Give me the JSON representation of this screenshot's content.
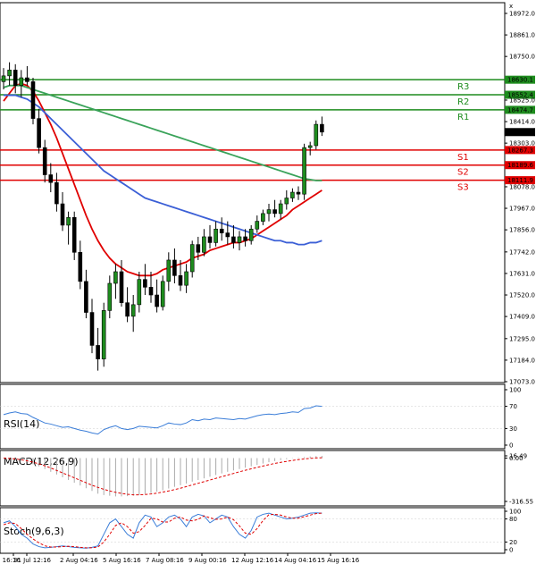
{
  "chart_data": {
    "type": "candlestick",
    "price_axis_ticks": [
      "18972.0",
      "18861.0",
      "18750.0",
      "18525.0",
      "18414.0",
      "18303.0",
      "18078.0",
      "17967.0",
      "17856.0",
      "17742.0",
      "17631.0",
      "17520.0",
      "17409.0",
      "17295.0",
      "17184.0",
      "17073.0"
    ],
    "x_tick_labels": [
      "Jul 16:16",
      "31 Jul 12:16",
      "2 Aug 04:16",
      "5 Aug 16:16",
      "7 Aug 08:16",
      "9 Aug 00:16",
      "12 Aug 12:16",
      "14 Aug 04:16",
      "15 Aug 16:16"
    ],
    "last_price": "18360.0",
    "levels": [
      {
        "name": "R3",
        "value": 18630.1,
        "tag": "18630.1",
        "color": "#1e8c1e"
      },
      {
        "name": "R2",
        "value": 18552.4,
        "tag": "18552.4",
        "color": "#1e8c1e"
      },
      {
        "name": "R1",
        "value": 18474.7,
        "tag": "18474.7",
        "color": "#1e8c1e"
      },
      {
        "name": "S1",
        "value": 18267.3,
        "tag": "18267.3",
        "color": "#e00000"
      },
      {
        "name": "S2",
        "value": 18189.6,
        "tag": "18189.6",
        "color": "#e00000"
      },
      {
        "name": "S3",
        "value": 18111.9,
        "tag": "18111.9",
        "color": "#e00000"
      }
    ],
    "candles": [
      [
        18620,
        18690,
        18580,
        18650
      ],
      [
        18650,
        18720,
        18600,
        18680
      ],
      [
        18680,
        18710,
        18560,
        18600
      ],
      [
        18600,
        18680,
        18540,
        18640
      ],
      [
        18640,
        18700,
        18600,
        18620
      ],
      [
        18620,
        18640,
        18400,
        18430
      ],
      [
        18430,
        18480,
        18250,
        18280
      ],
      [
        18280,
        18320,
        18100,
        18140
      ],
      [
        18140,
        18200,
        18050,
        18100
      ],
      [
        18100,
        18150,
        17950,
        17990
      ],
      [
        17990,
        18050,
        17850,
        17880
      ],
      [
        17880,
        17950,
        17780,
        17920
      ],
      [
        17920,
        17950,
        17700,
        17740
      ],
      [
        17740,
        17800,
        17550,
        17590
      ],
      [
        17590,
        17650,
        17400,
        17430
      ],
      [
        17430,
        17500,
        17220,
        17260
      ],
      [
        17260,
        17350,
        17130,
        17190
      ],
      [
        17190,
        17480,
        17150,
        17440
      ],
      [
        17440,
        17620,
        17400,
        17580
      ],
      [
        17580,
        17680,
        17500,
        17640
      ],
      [
        17640,
        17700,
        17460,
        17480
      ],
      [
        17480,
        17560,
        17380,
        17410
      ],
      [
        17410,
        17520,
        17330,
        17470
      ],
      [
        17470,
        17640,
        17430,
        17600
      ],
      [
        17600,
        17680,
        17520,
        17560
      ],
      [
        17560,
        17640,
        17480,
        17520
      ],
      [
        17520,
        17600,
        17430,
        17460
      ],
      [
        17460,
        17620,
        17440,
        17590
      ],
      [
        17590,
        17740,
        17540,
        17700
      ],
      [
        17700,
        17760,
        17580,
        17620
      ],
      [
        17620,
        17700,
        17540,
        17570
      ],
      [
        17570,
        17680,
        17530,
        17640
      ],
      [
        17640,
        17800,
        17610,
        17780
      ],
      [
        17780,
        17820,
        17700,
        17740
      ],
      [
        17740,
        17860,
        17720,
        17820
      ],
      [
        17820,
        17880,
        17760,
        17790
      ],
      [
        17790,
        17900,
        17770,
        17860
      ],
      [
        17860,
        17920,
        17800,
        17840
      ],
      [
        17840,
        17900,
        17780,
        17820
      ],
      [
        17820,
        17880,
        17760,
        17790
      ],
      [
        17790,
        17850,
        17750,
        17820
      ],
      [
        17820,
        17860,
        17770,
        17800
      ],
      [
        17800,
        17880,
        17780,
        17860
      ],
      [
        17860,
        17930,
        17840,
        17900
      ],
      [
        17900,
        17960,
        17880,
        17940
      ],
      [
        17940,
        17990,
        17900,
        17960
      ],
      [
        17960,
        18010,
        17920,
        17940
      ],
      [
        17940,
        18010,
        17910,
        17990
      ],
      [
        17990,
        18060,
        17960,
        18020
      ],
      [
        18020,
        18070,
        18000,
        18050
      ],
      [
        18050,
        18080,
        18010,
        18040
      ],
      [
        18040,
        18300,
        18010,
        18280
      ],
      [
        18280,
        18310,
        18240,
        18290
      ],
      [
        18290,
        18420,
        18270,
        18400
      ],
      [
        18400,
        18440,
        18340,
        18360
      ]
    ],
    "ma_series": [
      {
        "color": "#e00000",
        "values": [
          18520,
          18560,
          18600,
          18610,
          18600,
          18570,
          18520,
          18460,
          18400,
          18330,
          18250,
          18170,
          18090,
          18010,
          17930,
          17860,
          17800,
          17750,
          17710,
          17680,
          17660,
          17640,
          17630,
          17620,
          17620,
          17620,
          17630,
          17650,
          17660,
          17670,
          17680,
          17690,
          17710,
          17720,
          17730,
          17750,
          17760,
          17770,
          17780,
          17790,
          17790,
          17800,
          17810,
          17830,
          17850,
          17870,
          17890,
          17910,
          17930,
          17960,
          17980,
          18000,
          18020,
          18040,
          18060
        ]
      },
      {
        "color": "#3b5fd6",
        "values": [
          18550,
          18550,
          18550,
          18540,
          18530,
          18510,
          18490,
          18460,
          18430,
          18400,
          18370,
          18340,
          18310,
          18280,
          18250,
          18220,
          18190,
          18160,
          18140,
          18120,
          18100,
          18080,
          18060,
          18040,
          18020,
          18010,
          18000,
          17990,
          17980,
          17970,
          17960,
          17950,
          17940,
          17930,
          17920,
          17910,
          17900,
          17890,
          17880,
          17870,
          17860,
          17850,
          17840,
          17830,
          17820,
          17810,
          17800,
          17800,
          17790,
          17790,
          17780,
          17780,
          17790,
          17790,
          17800
        ]
      },
      {
        "color": "#3aa35a",
        "values": [
          18590,
          18600,
          18600,
          18600,
          18590,
          18580,
          18570,
          18560,
          18550,
          18540,
          18530,
          18520,
          18510,
          18500,
          18490,
          18480,
          18470,
          18460,
          18450,
          18440,
          18430,
          18420,
          18410,
          18400,
          18390,
          18380,
          18370,
          18360,
          18350,
          18340,
          18330,
          18320,
          18310,
          18300,
          18290,
          18280,
          18270,
          18260,
          18250,
          18240,
          18230,
          18220,
          18210,
          18200,
          18190,
          18180,
          18170,
          18160,
          18150,
          18140,
          18130,
          18120,
          18115,
          18110,
          18110
        ]
      }
    ],
    "rsi": {
      "label": "RSI(14)",
      "ticks": [
        "100",
        "70",
        "30",
        "0"
      ],
      "values": [
        55,
        58,
        60,
        57,
        56,
        50,
        45,
        40,
        38,
        35,
        32,
        33,
        30,
        27,
        25,
        22,
        20,
        28,
        32,
        35,
        30,
        28,
        30,
        34,
        33,
        32,
        31,
        35,
        40,
        38,
        37,
        40,
        46,
        44,
        47,
        46,
        49,
        48,
        47,
        46,
        48,
        47,
        50,
        53,
        55,
        56,
        55,
        57,
        58,
        60,
        59,
        66,
        67,
        71,
        70
      ]
    },
    "macd": {
      "label": "MACD(12,26,9)",
      "ticks": [
        "16.49",
        "0.00",
        "-316.55"
      ],
      "histogram": [
        0,
        -5,
        -10,
        -20,
        -30,
        -45,
        -60,
        -80,
        -100,
        -120,
        -140,
        -160,
        -180,
        -200,
        -220,
        -240,
        -260,
        -270,
        -275,
        -280,
        -280,
        -278,
        -275,
        -270,
        -262,
        -255,
        -245,
        -235,
        -222,
        -210,
        -198,
        -186,
        -172,
        -160,
        -148,
        -136,
        -124,
        -112,
        -100,
        -90,
        -80,
        -70,
        -60,
        -50,
        -40,
        -30,
        -22,
        -15,
        -8,
        -2,
        4,
        8,
        12,
        15,
        16
      ],
      "signal": [
        0,
        -3,
        -6,
        -12,
        -20,
        -30,
        -42,
        -56,
        -72,
        -90,
        -108,
        -126,
        -144,
        -162,
        -180,
        -198,
        -214,
        -228,
        -240,
        -250,
        -258,
        -264,
        -268,
        -268,
        -266,
        -262,
        -256,
        -248,
        -240,
        -230,
        -220,
        -208,
        -196,
        -184,
        -172,
        -160,
        -148,
        -136,
        -124,
        -112,
        -100,
        -89,
        -78,
        -68,
        -58,
        -48,
        -39,
        -31,
        -24,
        -17,
        -11,
        -6,
        -2,
        1,
        3
      ]
    },
    "stoch": {
      "label": "Stoch(9,6,3)",
      "ticks": [
        "100",
        "80",
        "20",
        "0"
      ],
      "k": [
        70,
        75,
        60,
        40,
        30,
        15,
        8,
        5,
        6,
        8,
        10,
        8,
        6,
        5,
        4,
        6,
        10,
        40,
        70,
        80,
        60,
        40,
        30,
        70,
        90,
        85,
        60,
        70,
        85,
        90,
        80,
        60,
        85,
        92,
        88,
        70,
        80,
        90,
        85,
        60,
        40,
        30,
        50,
        85,
        92,
        95,
        90,
        85,
        80,
        82,
        85,
        90,
        95,
        96,
        95
      ],
      "d": [
        65,
        70,
        68,
        55,
        40,
        28,
        18,
        10,
        7,
        7,
        8,
        9,
        8,
        6,
        5,
        5,
        7,
        20,
        40,
        63,
        70,
        60,
        43,
        47,
        63,
        82,
        80,
        72,
        72,
        82,
        85,
        77,
        75,
        79,
        88,
        83,
        79,
        80,
        85,
        78,
        62,
        43,
        40,
        55,
        76,
        91,
        92,
        90,
        85,
        82,
        82,
        86,
        90,
        94,
        95
      ]
    }
  }
}
